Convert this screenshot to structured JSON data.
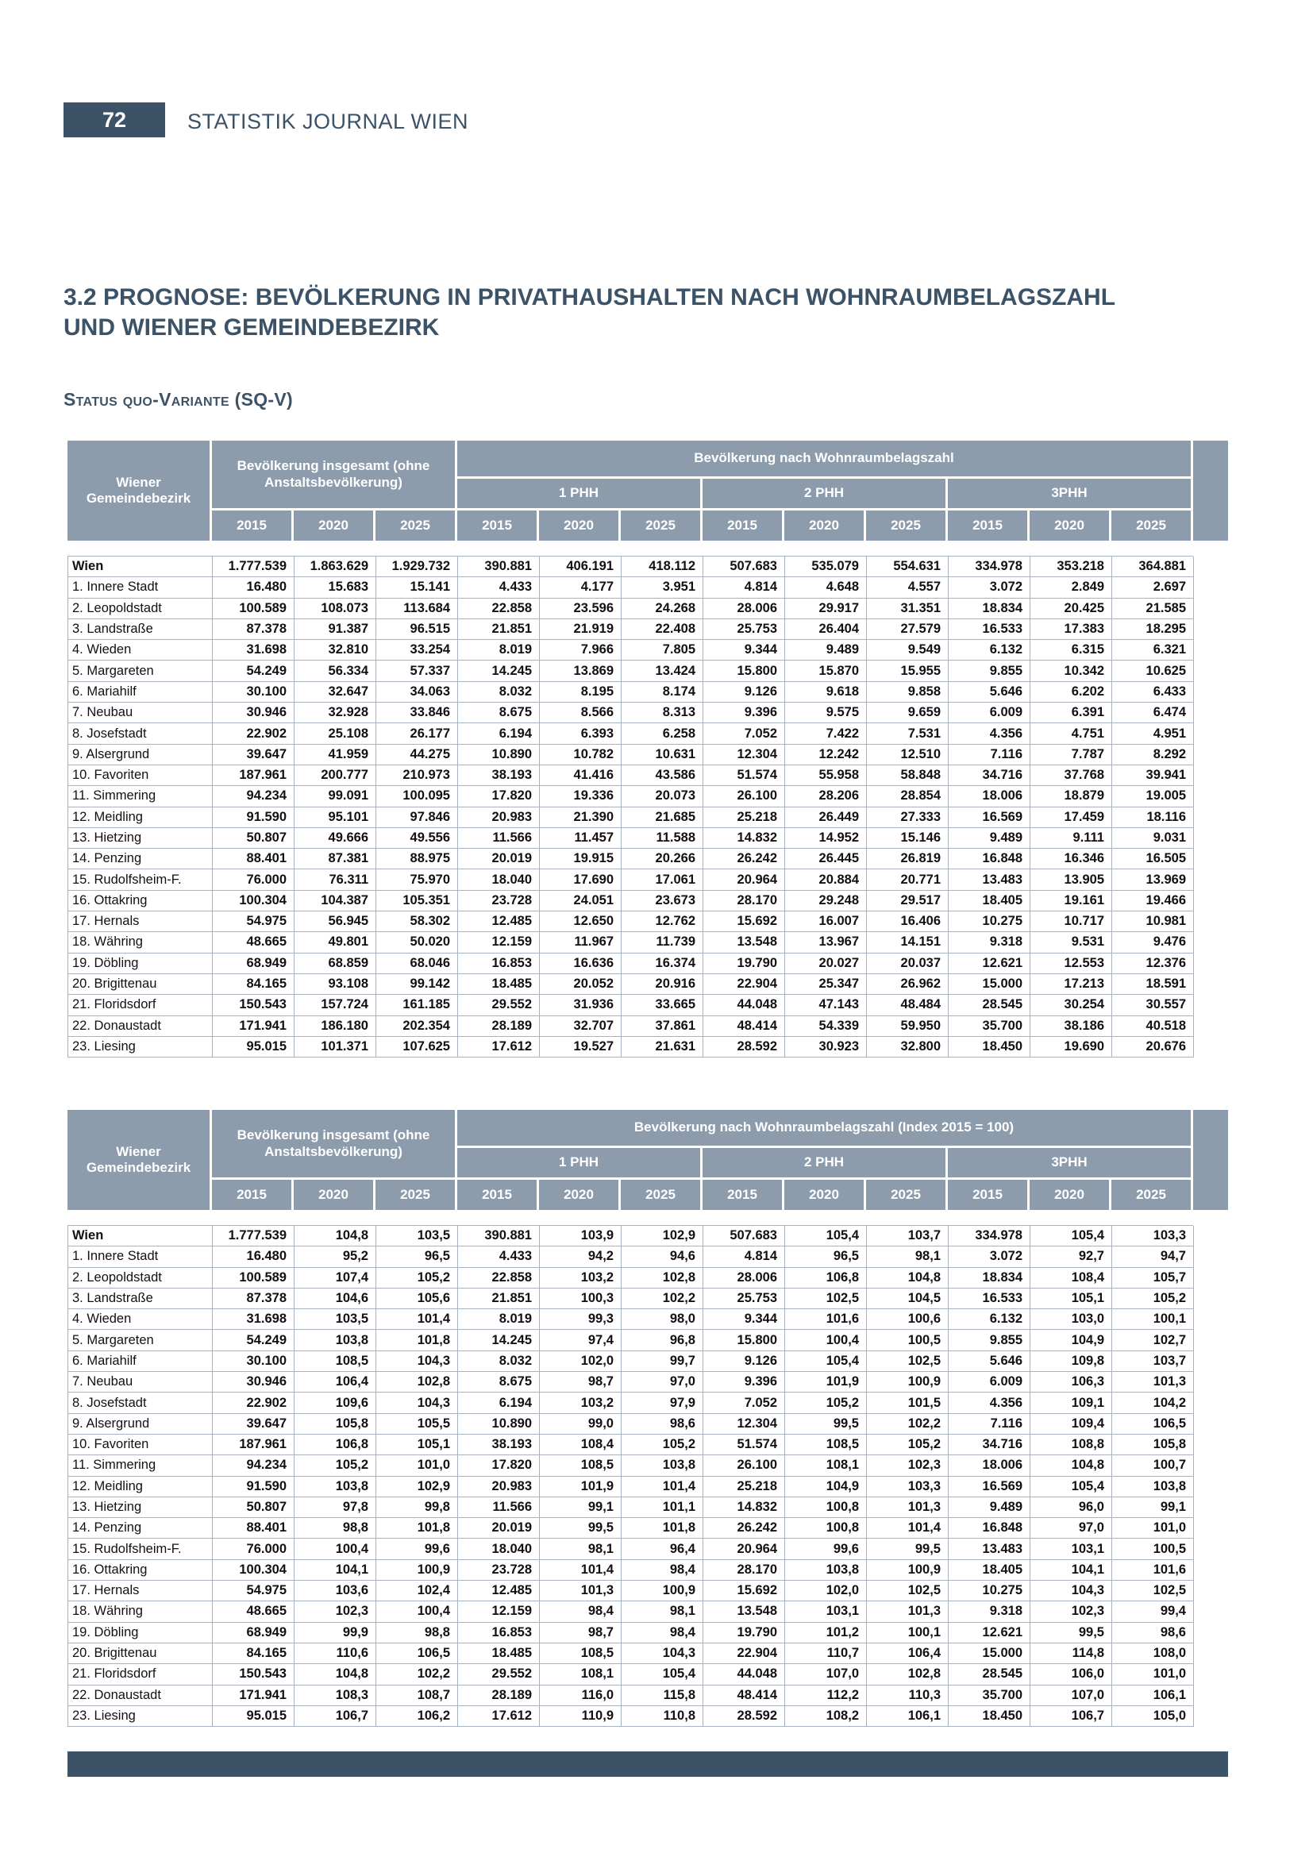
{
  "page": {
    "number": "72",
    "journal_title": "STATISTIK JOURNAL WIEN"
  },
  "section": {
    "title_line1": "3.2 PROGNOSE: BEVÖLKERUNG IN PRIVATHAUSHALTEN NACH WOHNRAUMBELAGSZAHL",
    "title_line2": "UND WIENER GEMEINDEBEZIRK",
    "variant_label": "Status quo-Variante (SQ-V)"
  },
  "table_common": {
    "district_header": "Wiener Gemeindebezirk",
    "total_header": "Bevölkerung insgesamt (ohne Anstaltsbevölkerung)",
    "phh_groups": [
      "1 PHH",
      "2 PHH",
      "3PHH"
    ],
    "years": [
      "2015",
      "2020",
      "2025"
    ]
  },
  "tables": [
    {
      "id": "absolute",
      "group_header": "Bevölkerung nach Wohnraumbelagszahl",
      "rows": [
        {
          "district": "Wien",
          "emphasis": true,
          "values": [
            "1.777.539",
            "1.863.629",
            "1.929.732",
            "390.881",
            "406.191",
            "418.112",
            "507.683",
            "535.079",
            "554.631",
            "334.978",
            "353.218",
            "364.881"
          ]
        },
        {
          "district": "1. Innere Stadt",
          "emphasis": false,
          "values": [
            "16.480",
            "15.683",
            "15.141",
            "4.433",
            "4.177",
            "3.951",
            "4.814",
            "4.648",
            "4.557",
            "3.072",
            "2.849",
            "2.697"
          ]
        },
        {
          "district": "2. Leopoldstadt",
          "emphasis": false,
          "values": [
            "100.589",
            "108.073",
            "113.684",
            "22.858",
            "23.596",
            "24.268",
            "28.006",
            "29.917",
            "31.351",
            "18.834",
            "20.425",
            "21.585"
          ]
        },
        {
          "district": "3. Landstraße",
          "emphasis": false,
          "values": [
            "87.378",
            "91.387",
            "96.515",
            "21.851",
            "21.919",
            "22.408",
            "25.753",
            "26.404",
            "27.579",
            "16.533",
            "17.383",
            "18.295"
          ]
        },
        {
          "district": "4. Wieden",
          "emphasis": false,
          "values": [
            "31.698",
            "32.810",
            "33.254",
            "8.019",
            "7.966",
            "7.805",
            "9.344",
            "9.489",
            "9.549",
            "6.132",
            "6.315",
            "6.321"
          ]
        },
        {
          "district": "5. Margareten",
          "emphasis": false,
          "values": [
            "54.249",
            "56.334",
            "57.337",
            "14.245",
            "13.869",
            "13.424",
            "15.800",
            "15.870",
            "15.955",
            "9.855",
            "10.342",
            "10.625"
          ]
        },
        {
          "district": "6. Mariahilf",
          "emphasis": false,
          "values": [
            "30.100",
            "32.647",
            "34.063",
            "8.032",
            "8.195",
            "8.174",
            "9.126",
            "9.618",
            "9.858",
            "5.646",
            "6.202",
            "6.433"
          ]
        },
        {
          "district": "7. Neubau",
          "emphasis": false,
          "values": [
            "30.946",
            "32.928",
            "33.846",
            "8.675",
            "8.566",
            "8.313",
            "9.396",
            "9.575",
            "9.659",
            "6.009",
            "6.391",
            "6.474"
          ]
        },
        {
          "district": "8. Josefstadt",
          "emphasis": false,
          "values": [
            "22.902",
            "25.108",
            "26.177",
            "6.194",
            "6.393",
            "6.258",
            "7.052",
            "7.422",
            "7.531",
            "4.356",
            "4.751",
            "4.951"
          ]
        },
        {
          "district": "9. Alsergrund",
          "emphasis": false,
          "values": [
            "39.647",
            "41.959",
            "44.275",
            "10.890",
            "10.782",
            "10.631",
            "12.304",
            "12.242",
            "12.510",
            "7.116",
            "7.787",
            "8.292"
          ]
        },
        {
          "district": "10. Favoriten",
          "emphasis": false,
          "values": [
            "187.961",
            "200.777",
            "210.973",
            "38.193",
            "41.416",
            "43.586",
            "51.574",
            "55.958",
            "58.848",
            "34.716",
            "37.768",
            "39.941"
          ]
        },
        {
          "district": "11. Simmering",
          "emphasis": false,
          "values": [
            "94.234",
            "99.091",
            "100.095",
            "17.820",
            "19.336",
            "20.073",
            "26.100",
            "28.206",
            "28.854",
            "18.006",
            "18.879",
            "19.005"
          ]
        },
        {
          "district": "12. Meidling",
          "emphasis": false,
          "values": [
            "91.590",
            "95.101",
            "97.846",
            "20.983",
            "21.390",
            "21.685",
            "25.218",
            "26.449",
            "27.333",
            "16.569",
            "17.459",
            "18.116"
          ]
        },
        {
          "district": "13. Hietzing",
          "emphasis": false,
          "values": [
            "50.807",
            "49.666",
            "49.556",
            "11.566",
            "11.457",
            "11.588",
            "14.832",
            "14.952",
            "15.146",
            "9.489",
            "9.111",
            "9.031"
          ]
        },
        {
          "district": "14. Penzing",
          "emphasis": false,
          "values": [
            "88.401",
            "87.381",
            "88.975",
            "20.019",
            "19.915",
            "20.266",
            "26.242",
            "26.445",
            "26.819",
            "16.848",
            "16.346",
            "16.505"
          ]
        },
        {
          "district": "15. Rudolfsheim-F.",
          "emphasis": false,
          "values": [
            "76.000",
            "76.311",
            "75.970",
            "18.040",
            "17.690",
            "17.061",
            "20.964",
            "20.884",
            "20.771",
            "13.483",
            "13.905",
            "13.969"
          ]
        },
        {
          "district": "16. Ottakring",
          "emphasis": false,
          "values": [
            "100.304",
            "104.387",
            "105.351",
            "23.728",
            "24.051",
            "23.673",
            "28.170",
            "29.248",
            "29.517",
            "18.405",
            "19.161",
            "19.466"
          ]
        },
        {
          "district": "17. Hernals",
          "emphasis": false,
          "values": [
            "54.975",
            "56.945",
            "58.302",
            "12.485",
            "12.650",
            "12.762",
            "15.692",
            "16.007",
            "16.406",
            "10.275",
            "10.717",
            "10.981"
          ]
        },
        {
          "district": "18. Währing",
          "emphasis": false,
          "values": [
            "48.665",
            "49.801",
            "50.020",
            "12.159",
            "11.967",
            "11.739",
            "13.548",
            "13.967",
            "14.151",
            "9.318",
            "9.531",
            "9.476"
          ]
        },
        {
          "district": "19. Döbling",
          "emphasis": false,
          "values": [
            "68.949",
            "68.859",
            "68.046",
            "16.853",
            "16.636",
            "16.374",
            "19.790",
            "20.027",
            "20.037",
            "12.621",
            "12.553",
            "12.376"
          ]
        },
        {
          "district": "20. Brigittenau",
          "emphasis": false,
          "values": [
            "84.165",
            "93.108",
            "99.142",
            "18.485",
            "20.052",
            "20.916",
            "22.904",
            "25.347",
            "26.962",
            "15.000",
            "17.213",
            "18.591"
          ]
        },
        {
          "district": "21. Floridsdorf",
          "emphasis": false,
          "values": [
            "150.543",
            "157.724",
            "161.185",
            "29.552",
            "31.936",
            "33.665",
            "44.048",
            "47.143",
            "48.484",
            "28.545",
            "30.254",
            "30.557"
          ]
        },
        {
          "district": "22. Donaustadt",
          "emphasis": false,
          "values": [
            "171.941",
            "186.180",
            "202.354",
            "28.189",
            "32.707",
            "37.861",
            "48.414",
            "54.339",
            "59.950",
            "35.700",
            "38.186",
            "40.518"
          ]
        },
        {
          "district": "23. Liesing",
          "emphasis": false,
          "values": [
            "95.015",
            "101.371",
            "107.625",
            "17.612",
            "19.527",
            "21.631",
            "28.592",
            "30.923",
            "32.800",
            "18.450",
            "19.690",
            "20.676"
          ]
        }
      ]
    },
    {
      "id": "index",
      "group_header": "Bevölkerung nach Wohnraumbelagszahl (Index 2015 = 100)",
      "rows": [
        {
          "district": "Wien",
          "emphasis": true,
          "values": [
            "1.777.539",
            "104,8",
            "103,5",
            "390.881",
            "103,9",
            "102,9",
            "507.683",
            "105,4",
            "103,7",
            "334.978",
            "105,4",
            "103,3"
          ]
        },
        {
          "district": "1. Innere Stadt",
          "emphasis": false,
          "values": [
            "16.480",
            "95,2",
            "96,5",
            "4.433",
            "94,2",
            "94,6",
            "4.814",
            "96,5",
            "98,1",
            "3.072",
            "92,7",
            "94,7"
          ]
        },
        {
          "district": "2. Leopoldstadt",
          "emphasis": false,
          "values": [
            "100.589",
            "107,4",
            "105,2",
            "22.858",
            "103,2",
            "102,8",
            "28.006",
            "106,8",
            "104,8",
            "18.834",
            "108,4",
            "105,7"
          ]
        },
        {
          "district": "3. Landstraße",
          "emphasis": false,
          "values": [
            "87.378",
            "104,6",
            "105,6",
            "21.851",
            "100,3",
            "102,2",
            "25.753",
            "102,5",
            "104,5",
            "16.533",
            "105,1",
            "105,2"
          ]
        },
        {
          "district": "4. Wieden",
          "emphasis": false,
          "values": [
            "31.698",
            "103,5",
            "101,4",
            "8.019",
            "99,3",
            "98,0",
            "9.344",
            "101,6",
            "100,6",
            "6.132",
            "103,0",
            "100,1"
          ]
        },
        {
          "district": "5. Margareten",
          "emphasis": false,
          "values": [
            "54.249",
            "103,8",
            "101,8",
            "14.245",
            "97,4",
            "96,8",
            "15.800",
            "100,4",
            "100,5",
            "9.855",
            "104,9",
            "102,7"
          ]
        },
        {
          "district": "6. Mariahilf",
          "emphasis": false,
          "values": [
            "30.100",
            "108,5",
            "104,3",
            "8.032",
            "102,0",
            "99,7",
            "9.126",
            "105,4",
            "102,5",
            "5.646",
            "109,8",
            "103,7"
          ]
        },
        {
          "district": "7. Neubau",
          "emphasis": false,
          "values": [
            "30.946",
            "106,4",
            "102,8",
            "8.675",
            "98,7",
            "97,0",
            "9.396",
            "101,9",
            "100,9",
            "6.009",
            "106,3",
            "101,3"
          ]
        },
        {
          "district": "8. Josefstadt",
          "emphasis": false,
          "values": [
            "22.902",
            "109,6",
            "104,3",
            "6.194",
            "103,2",
            "97,9",
            "7.052",
            "105,2",
            "101,5",
            "4.356",
            "109,1",
            "104,2"
          ]
        },
        {
          "district": "9. Alsergrund",
          "emphasis": false,
          "values": [
            "39.647",
            "105,8",
            "105,5",
            "10.890",
            "99,0",
            "98,6",
            "12.304",
            "99,5",
            "102,2",
            "7.116",
            "109,4",
            "106,5"
          ]
        },
        {
          "district": "10. Favoriten",
          "emphasis": false,
          "values": [
            "187.961",
            "106,8",
            "105,1",
            "38.193",
            "108,4",
            "105,2",
            "51.574",
            "108,5",
            "105,2",
            "34.716",
            "108,8",
            "105,8"
          ]
        },
        {
          "district": "11. Simmering",
          "emphasis": false,
          "values": [
            "94.234",
            "105,2",
            "101,0",
            "17.820",
            "108,5",
            "103,8",
            "26.100",
            "108,1",
            "102,3",
            "18.006",
            "104,8",
            "100,7"
          ]
        },
        {
          "district": "12. Meidling",
          "emphasis": false,
          "values": [
            "91.590",
            "103,8",
            "102,9",
            "20.983",
            "101,9",
            "101,4",
            "25.218",
            "104,9",
            "103,3",
            "16.569",
            "105,4",
            "103,8"
          ]
        },
        {
          "district": "13. Hietzing",
          "emphasis": false,
          "values": [
            "50.807",
            "97,8",
            "99,8",
            "11.566",
            "99,1",
            "101,1",
            "14.832",
            "100,8",
            "101,3",
            "9.489",
            "96,0",
            "99,1"
          ]
        },
        {
          "district": "14. Penzing",
          "emphasis": false,
          "values": [
            "88.401",
            "98,8",
            "101,8",
            "20.019",
            "99,5",
            "101,8",
            "26.242",
            "100,8",
            "101,4",
            "16.848",
            "97,0",
            "101,0"
          ]
        },
        {
          "district": "15. Rudolfsheim-F.",
          "emphasis": false,
          "values": [
            "76.000",
            "100,4",
            "99,6",
            "18.040",
            "98,1",
            "96,4",
            "20.964",
            "99,6",
            "99,5",
            "13.483",
            "103,1",
            "100,5"
          ]
        },
        {
          "district": "16. Ottakring",
          "emphasis": false,
          "values": [
            "100.304",
            "104,1",
            "100,9",
            "23.728",
            "101,4",
            "98,4",
            "28.170",
            "103,8",
            "100,9",
            "18.405",
            "104,1",
            "101,6"
          ]
        },
        {
          "district": "17. Hernals",
          "emphasis": false,
          "values": [
            "54.975",
            "103,6",
            "102,4",
            "12.485",
            "101,3",
            "100,9",
            "15.692",
            "102,0",
            "102,5",
            "10.275",
            "104,3",
            "102,5"
          ]
        },
        {
          "district": "18. Währing",
          "emphasis": false,
          "values": [
            "48.665",
            "102,3",
            "100,4",
            "12.159",
            "98,4",
            "98,1",
            "13.548",
            "103,1",
            "101,3",
            "9.318",
            "102,3",
            "99,4"
          ]
        },
        {
          "district": "19. Döbling",
          "emphasis": false,
          "values": [
            "68.949",
            "99,9",
            "98,8",
            "16.853",
            "98,7",
            "98,4",
            "19.790",
            "101,2",
            "100,1",
            "12.621",
            "99,5",
            "98,6"
          ]
        },
        {
          "district": "20. Brigittenau",
          "emphasis": false,
          "values": [
            "84.165",
            "110,6",
            "106,5",
            "18.485",
            "108,5",
            "104,3",
            "22.904",
            "110,7",
            "106,4",
            "15.000",
            "114,8",
            "108,0"
          ]
        },
        {
          "district": "21. Floridsdorf",
          "emphasis": false,
          "values": [
            "150.543",
            "104,8",
            "102,2",
            "29.552",
            "108,1",
            "105,4",
            "44.048",
            "107,0",
            "102,8",
            "28.545",
            "106,0",
            "101,0"
          ]
        },
        {
          "district": "22. Donaustadt",
          "emphasis": false,
          "values": [
            "171.941",
            "108,3",
            "108,7",
            "28.189",
            "116,0",
            "115,8",
            "48.414",
            "112,2",
            "110,3",
            "35.700",
            "107,0",
            "106,1"
          ]
        },
        {
          "district": "23. Liesing",
          "emphasis": false,
          "values": [
            "95.015",
            "106,7",
            "106,2",
            "17.612",
            "110,9",
            "110,8",
            "28.592",
            "108,2",
            "106,1",
            "18.450",
            "106,7",
            "105,0"
          ]
        }
      ]
    }
  ],
  "colors": {
    "accent_dark": "#3c5266",
    "header_bg": "#8d9cac",
    "grid_line": "#a7b3bf"
  }
}
